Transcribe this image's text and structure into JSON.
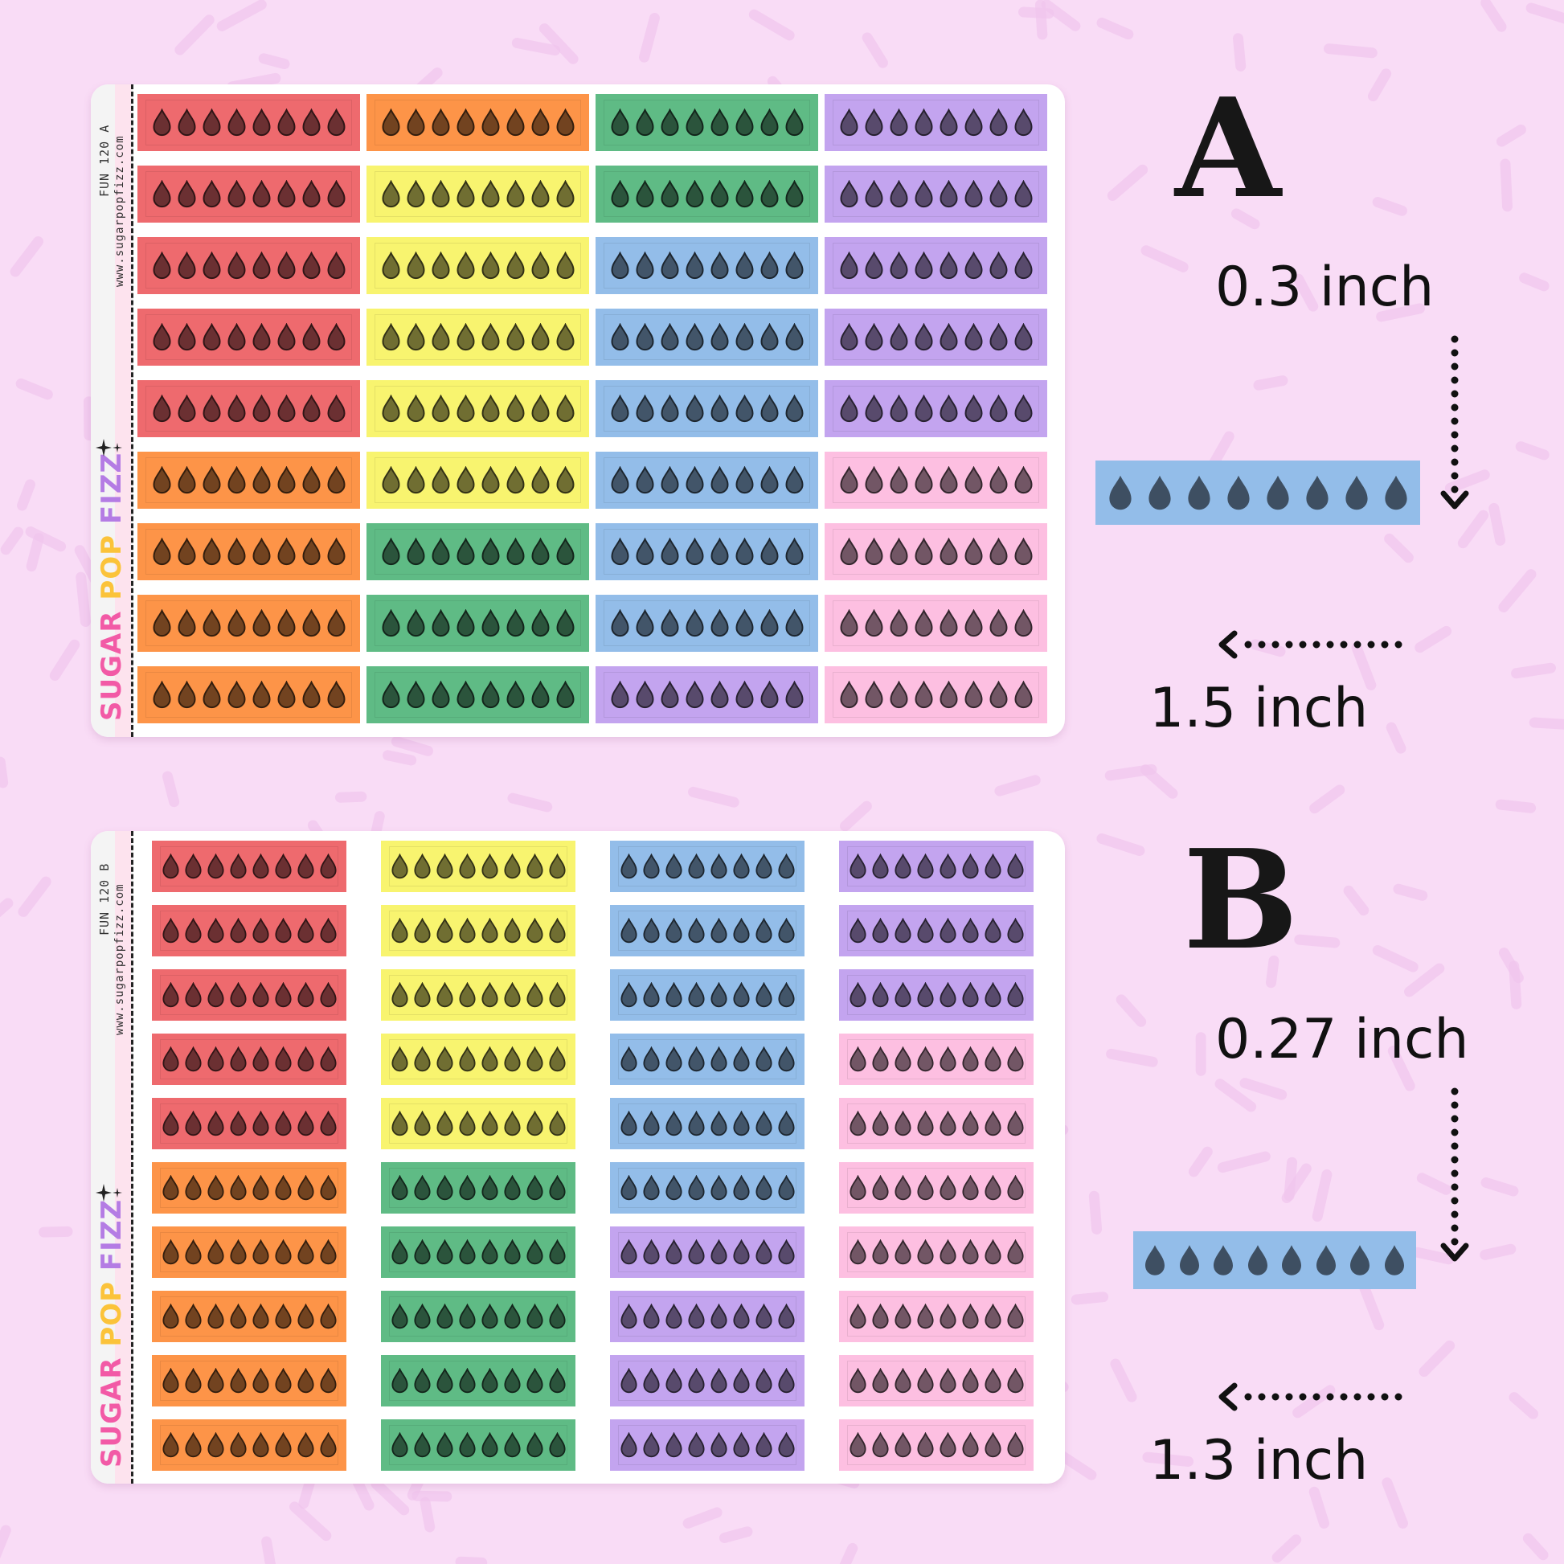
{
  "colors": {
    "background": "#f9dcf6",
    "sprinkle": "#f1c6ee",
    "red": "#ee6a6e",
    "orange": "#fd9448",
    "yellow": "#f8f46f",
    "green": "#5fbb85",
    "blue": "#93bde9",
    "purple": "#c3a4ef",
    "pink": "#fdbfe1",
    "brand_sugar": "#f25aa6",
    "brand_pop": "#fbc33a",
    "brand_fizz": "#b47ce4"
  },
  "sheet_a": {
    "code": "FUN 120 A",
    "url": "www.sugarpopfizz.com",
    "brand": {
      "sugar": "SUGAR",
      "pop": "POP",
      "fizz": "FIZZ"
    },
    "drops_per_sticker": 8,
    "columns": [
      [
        "red",
        "red",
        "red",
        "red",
        "red",
        "orange",
        "orange",
        "orange",
        "orange"
      ],
      [
        "orange",
        "yellow",
        "yellow",
        "yellow",
        "yellow",
        "yellow",
        "green",
        "green",
        "green"
      ],
      [
        "green",
        "green",
        "blue",
        "blue",
        "blue",
        "blue",
        "blue",
        "blue",
        "purple"
      ],
      [
        "purple",
        "purple",
        "purple",
        "purple",
        "purple",
        "pink",
        "pink",
        "pink",
        "pink"
      ]
    ]
  },
  "sheet_b": {
    "code": "FUN 120 B",
    "url": "www.sugarpopfizz.com",
    "brand": {
      "sugar": "SUGAR",
      "pop": "POP",
      "fizz": "FIZZ"
    },
    "drops_per_sticker": 8,
    "columns": [
      [
        "red",
        "red",
        "red",
        "red",
        "red",
        "orange",
        "orange",
        "orange",
        "orange",
        "orange"
      ],
      [
        "yellow",
        "yellow",
        "yellow",
        "yellow",
        "yellow",
        "green",
        "green",
        "green",
        "green",
        "green"
      ],
      [
        "blue",
        "blue",
        "blue",
        "blue",
        "blue",
        "blue",
        "purple",
        "purple",
        "purple",
        "purple"
      ],
      [
        "purple",
        "purple",
        "purple",
        "pink",
        "pink",
        "pink",
        "pink",
        "pink",
        "pink",
        "pink"
      ]
    ]
  },
  "variant_a": {
    "letter": "A",
    "height": "0.3 inch",
    "width": "1.5 inch",
    "sample_color": "blue"
  },
  "variant_b": {
    "letter": "B",
    "height": "0.27 inch",
    "width": "1.3 inch",
    "sample_color": "blue"
  },
  "icons": {
    "drop": "droplet-icon",
    "sparkle": "sparkle-icon",
    "arrow_down": "dotted-arrow-down-icon",
    "arrow_left": "dotted-arrow-left-icon"
  }
}
